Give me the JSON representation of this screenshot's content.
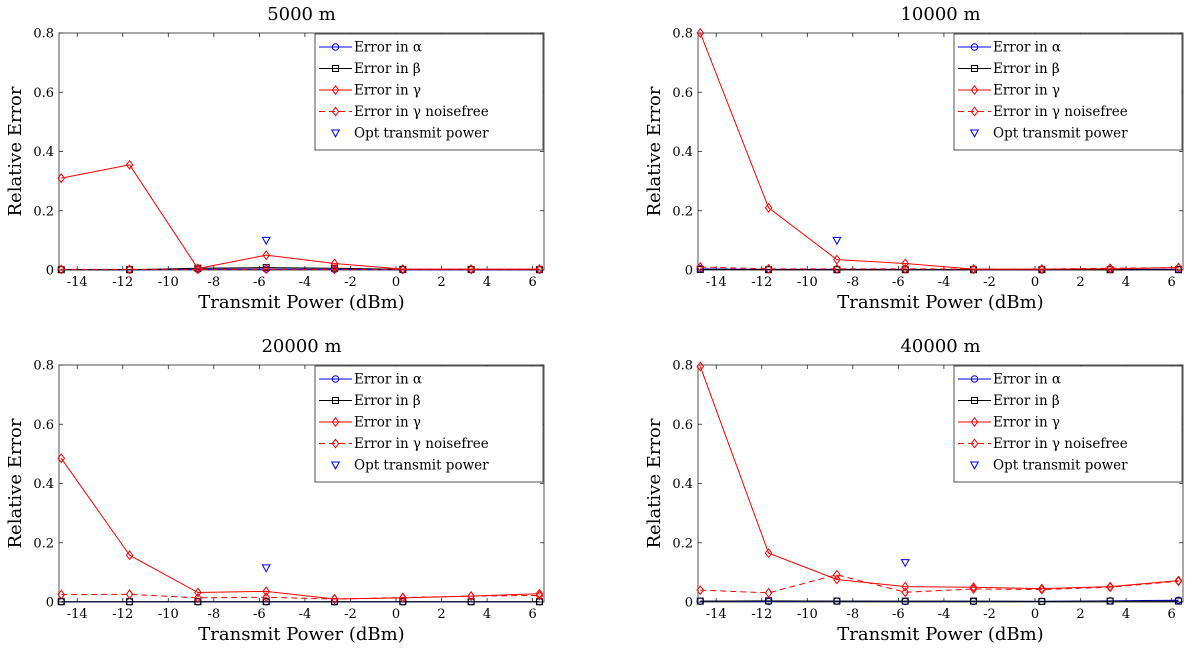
{
  "chart_data": [
    {
      "type": "line",
      "title": "5000 m",
      "xlabel": "Transmit Power (dBm)",
      "ylabel": "Relative Error",
      "xlim": [
        -14.8,
        6.5
      ],
      "ylim": [
        0,
        0.8
      ],
      "xticks": [
        "-14",
        "-12",
        "-10",
        "-8",
        "-6",
        "-4",
        "-2",
        "0",
        "2",
        "4",
        "6"
      ],
      "yticks": [
        "0",
        "0.2",
        "0.4",
        "0.6",
        "0.8"
      ],
      "legend_position": "top-right",
      "x": [
        -14.7,
        -11.7,
        -8.7,
        -5.7,
        -2.7,
        0.3,
        3.3,
        6.3
      ],
      "series": [
        {
          "name": "Error in α",
          "color": "#0000ff",
          "marker": "circle",
          "dash": false,
          "values": [
            0.002,
            0.001,
            0.002,
            0.003,
            0.002,
            0.001,
            0.001,
            0.001
          ]
        },
        {
          "name": "Error in β",
          "color": "#000000",
          "marker": "square",
          "dash": false,
          "values": [
            0.001,
            0.001,
            0.006,
            0.008,
            0.006,
            0.002,
            0.002,
            0.001
          ]
        },
        {
          "name": "Error in γ",
          "color": "#ff0000",
          "marker": "diamond",
          "dash": false,
          "values": [
            0.31,
            0.355,
            0.005,
            0.05,
            0.022,
            0.003,
            0.003,
            0.003
          ]
        },
        {
          "name": "Error in γ noisefree",
          "color": "#ff0000",
          "marker": "diamond",
          "dash": true,
          "values": [
            0.002,
            0.002,
            0.002,
            0.003,
            0.002,
            0.002,
            0.002,
            0.002
          ]
        },
        {
          "name": "Opt transmit power",
          "color": "#0000ff",
          "marker": "triangle",
          "line": false,
          "points": [
            [
              -5.7,
              0.1
            ]
          ]
        }
      ]
    },
    {
      "type": "line",
      "title": "10000 m",
      "xlabel": "Transmit Power (dBm)",
      "ylabel": "Relative Error",
      "xlim": [
        -14.8,
        6.5
      ],
      "ylim": [
        0,
        0.8
      ],
      "xticks": [
        "-14",
        "-12",
        "-10",
        "-8",
        "-6",
        "-4",
        "-2",
        "0",
        "2",
        "4",
        "6"
      ],
      "yticks": [
        "0",
        "0.2",
        "0.4",
        "0.6",
        "0.8"
      ],
      "legend_position": "top-right",
      "x": [
        -14.7,
        -11.7,
        -8.7,
        -5.7,
        -2.7,
        0.3,
        3.3,
        6.3
      ],
      "series": [
        {
          "name": "Error in α",
          "color": "#0000ff",
          "marker": "circle",
          "dash": false,
          "values": [
            0.004,
            0.002,
            0.002,
            0.002,
            0.001,
            0.001,
            0.002,
            0.002
          ]
        },
        {
          "name": "Error in β",
          "color": "#000000",
          "marker": "square",
          "dash": false,
          "values": [
            0.002,
            0.001,
            0.001,
            0.001,
            0.001,
            0.001,
            0.001,
            0.001
          ]
        },
        {
          "name": "Error in γ",
          "color": "#ff0000",
          "marker": "diamond",
          "dash": false,
          "values": [
            0.8,
            0.21,
            0.035,
            0.022,
            0.003,
            0.003,
            0.004,
            0.008
          ]
        },
        {
          "name": "Error in γ noisefree",
          "color": "#ff0000",
          "marker": "diamond",
          "dash": true,
          "values": [
            0.01,
            0.004,
            0.004,
            0.004,
            0.003,
            0.003,
            0.006,
            0.008
          ]
        },
        {
          "name": "Opt transmit power",
          "color": "#0000ff",
          "marker": "triangle",
          "line": false,
          "points": [
            [
              -8.7,
              0.1
            ]
          ]
        }
      ]
    },
    {
      "type": "line",
      "title": "20000 m",
      "xlabel": "Transmit Power (dBm)",
      "ylabel": "Relative Error",
      "xlim": [
        -14.8,
        6.5
      ],
      "ylim": [
        0,
        0.8
      ],
      "xticks": [
        "-14",
        "-12",
        "-10",
        "-8",
        "-6",
        "-4",
        "-2",
        "0",
        "2",
        "4",
        "6"
      ],
      "yticks": [
        "0",
        "0.2",
        "0.4",
        "0.6",
        "0.8"
      ],
      "legend_position": "top-right",
      "x": [
        -14.7,
        -11.7,
        -8.7,
        -5.7,
        -2.7,
        0.3,
        3.3,
        6.3
      ],
      "series": [
        {
          "name": "Error in α",
          "color": "#0000ff",
          "marker": "circle",
          "dash": false,
          "values": [
            0.001,
            0.001,
            0.001,
            0.001,
            0.001,
            0.001,
            0.001,
            0.001
          ]
        },
        {
          "name": "Error in β",
          "color": "#000000",
          "marker": "square",
          "dash": false,
          "values": [
            0.001,
            0.001,
            0.001,
            0.001,
            0.001,
            0.001,
            0.001,
            0.001
          ]
        },
        {
          "name": "Error in γ",
          "color": "#ff0000",
          "marker": "diamond",
          "dash": false,
          "values": [
            0.485,
            0.158,
            0.032,
            0.036,
            0.01,
            0.014,
            0.02,
            0.028
          ]
        },
        {
          "name": "Error in γ noisefree",
          "color": "#ff0000",
          "marker": "diamond",
          "dash": true,
          "values": [
            0.025,
            0.026,
            0.014,
            0.016,
            0.01,
            0.015,
            0.02,
            0.022
          ]
        },
        {
          "name": "Opt transmit power",
          "color": "#0000ff",
          "marker": "triangle",
          "line": false,
          "points": [
            [
              -5.7,
              0.115
            ]
          ]
        }
      ]
    },
    {
      "type": "line",
      "title": "40000 m",
      "xlabel": "Transmit Power (dBm)",
      "ylabel": "Relative Error",
      "xlim": [
        -14.8,
        6.5
      ],
      "ylim": [
        0,
        0.8
      ],
      "xticks": [
        "-14",
        "-12",
        "-10",
        "-8",
        "-6",
        "-4",
        "-2",
        "0",
        "2",
        "4",
        "6"
      ],
      "yticks": [
        "0",
        "0.2",
        "0.4",
        "0.6",
        "0.8"
      ],
      "legend_position": "top-right",
      "x": [
        -14.7,
        -11.7,
        -8.7,
        -5.7,
        -2.7,
        0.3,
        3.3,
        6.3
      ],
      "series": [
        {
          "name": "Error in α",
          "color": "#0000ff",
          "marker": "circle",
          "dash": false,
          "values": [
            0.003,
            0.002,
            0.003,
            0.002,
            0.002,
            0.002,
            0.004,
            0.006
          ]
        },
        {
          "name": "Error in β",
          "color": "#000000",
          "marker": "square",
          "dash": false,
          "values": [
            0.003,
            0.004,
            0.003,
            0.003,
            0.003,
            0.002,
            0.003,
            0.003
          ]
        },
        {
          "name": "Error in γ",
          "color": "#ff0000",
          "marker": "diamond",
          "dash": false,
          "values": [
            0.795,
            0.165,
            0.076,
            0.052,
            0.05,
            0.045,
            0.052,
            0.072
          ]
        },
        {
          "name": "Error in γ noisefree",
          "color": "#ff0000",
          "marker": "diamond",
          "dash": true,
          "values": [
            0.04,
            0.031,
            0.092,
            0.033,
            0.044,
            0.042,
            0.05,
            0.07
          ]
        },
        {
          "name": "Opt transmit power",
          "color": "#0000ff",
          "marker": "triangle",
          "line": false,
          "points": [
            [
              -5.7,
              0.133
            ]
          ]
        }
      ]
    }
  ]
}
